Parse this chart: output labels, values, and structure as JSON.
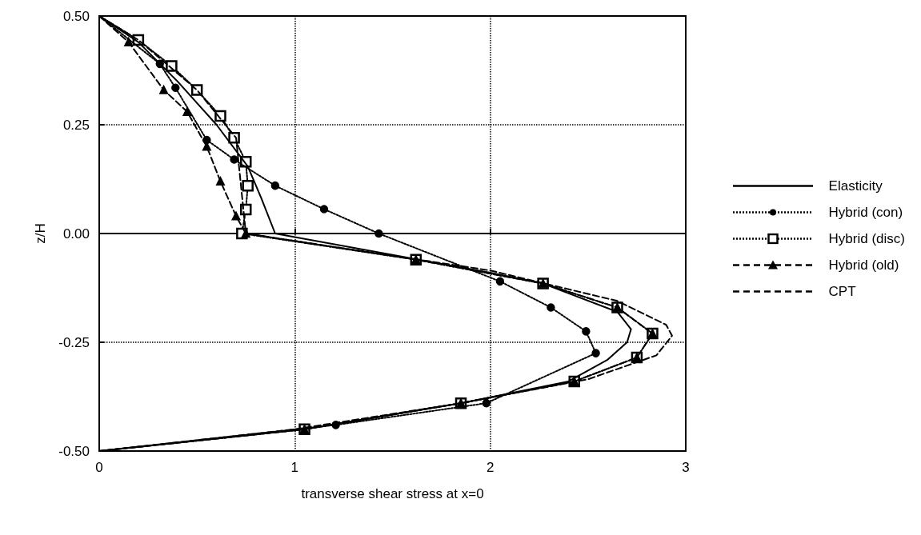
{
  "chart_data": {
    "type": "line",
    "xlabel": "transverse shear stress at x=0",
    "ylabel": "z/H",
    "xlim": [
      0,
      3
    ],
    "xticks": [
      0,
      1,
      2,
      3
    ],
    "ylim": [
      -0.5,
      0.5
    ],
    "yticks": [
      {
        "value": -0.5,
        "label": "-0.50"
      },
      {
        "value": -0.25,
        "label": "-0.25"
      },
      {
        "value": 0,
        "label": "0.00"
      },
      {
        "value": 0.25,
        "label": "0.25"
      },
      {
        "value": 0.5,
        "label": "0.50"
      }
    ],
    "grid": true,
    "legend": "right",
    "series": [
      {
        "name": "Elasticity",
        "color": "#000000",
        "line_style": "solid",
        "marker": "none",
        "x": [
          0,
          0.2,
          0.4,
          0.6,
          0.76,
          0.83,
          0.9,
          2.0,
          2.27,
          2.65,
          2.72,
          2.7,
          2.6,
          2.4,
          1.85,
          1.05,
          0
        ],
        "values": [
          0.5,
          0.44,
          0.35,
          0.25,
          0.154,
          0.08,
          0.0,
          -0.09,
          -0.115,
          -0.18,
          -0.22,
          -0.25,
          -0.29,
          -0.34,
          -0.39,
          -0.45,
          -0.5
        ]
      },
      {
        "name": "Hybrid (con)",
        "color": "#000000",
        "line_style": "dotted",
        "marker": "circle",
        "x": [
          0,
          0.31,
          0.39,
          0.55,
          0.69,
          0.9,
          1.15,
          1.43,
          2.05,
          2.31,
          2.49,
          2.54,
          1.98,
          1.21,
          0
        ],
        "values": [
          0.5,
          0.39,
          0.335,
          0.215,
          0.17,
          0.11,
          0.056,
          0.0,
          -0.11,
          -0.17,
          -0.225,
          -0.275,
          -0.39,
          -0.44,
          -0.5
        ]
      },
      {
        "name": "Hybrid (disc)",
        "color": "#000000",
        "line_style": "dotted",
        "marker": "square",
        "x": [
          0,
          0.2,
          0.37,
          0.5,
          0.62,
          0.69,
          0.75,
          0.76,
          0.75,
          0.73,
          1.62,
          2.27,
          2.65,
          2.83,
          2.75,
          2.43,
          1.85,
          1.05,
          0
        ],
        "values": [
          0.5,
          0.445,
          0.385,
          0.33,
          0.27,
          0.22,
          0.165,
          0.11,
          0.055,
          0.0,
          -0.06,
          -0.115,
          -0.17,
          -0.23,
          -0.285,
          -0.34,
          -0.39,
          -0.45,
          -0.5
        ]
      },
      {
        "name": "Hybrid (old)",
        "color": "#000000",
        "line_style": "dashed",
        "marker": "triangle",
        "x": [
          0,
          0.15,
          0.33,
          0.45,
          0.55,
          0.62,
          0.7,
          0.75,
          1.62,
          2.27,
          2.65,
          2.83,
          2.75,
          2.43,
          1.85,
          1.05,
          0
        ],
        "values": [
          0.5,
          0.44,
          0.33,
          0.28,
          0.2,
          0.12,
          0.04,
          0.0,
          -0.06,
          -0.115,
          -0.17,
          -0.23,
          -0.285,
          -0.34,
          -0.39,
          -0.45,
          -0.5
        ]
      },
      {
        "name": "CPT",
        "color": "#000000",
        "line_style": "dashed",
        "marker": "none",
        "x": [
          0,
          0.2,
          0.5,
          0.7,
          0.75,
          2.0,
          2.65,
          2.9,
          2.93,
          2.85,
          2.5,
          1.85,
          1.0,
          0
        ],
        "values": [
          0.5,
          0.445,
          0.33,
          0.22,
          0.0,
          -0.085,
          -0.155,
          -0.21,
          -0.235,
          -0.28,
          -0.335,
          -0.39,
          -0.45,
          -0.5
        ]
      }
    ]
  }
}
